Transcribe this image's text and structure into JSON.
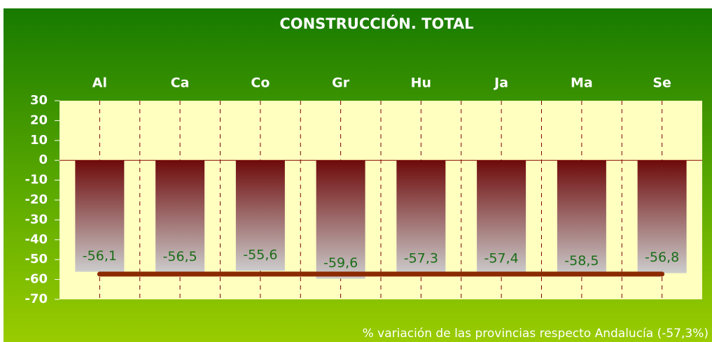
{
  "chart_data": {
    "type": "bar",
    "title": "CONSTRUCCIÓN. TOTAL",
    "categories": [
      "Al",
      "Ca",
      "Co",
      "Gr",
      "Hu",
      "Ja",
      "Ma",
      "Se"
    ],
    "values": [
      -56.1,
      -56.5,
      -55.6,
      -59.6,
      -57.3,
      -57.4,
      -58.5,
      -56.8
    ],
    "value_labels": [
      "-56,1",
      "-56,5",
      "-55,6",
      "-59,6",
      "-57,3",
      "-57,4",
      "-58,5",
      "-56,8"
    ],
    "reference": -57.3,
    "note": "% variación de las provincias respecto Andalucía (-57,3%)",
    "ylim": [
      -70,
      30
    ],
    "yticks": [
      30,
      20,
      10,
      0,
      -10,
      -20,
      -30,
      -40,
      -50,
      -60,
      -70
    ],
    "grid": true
  }
}
